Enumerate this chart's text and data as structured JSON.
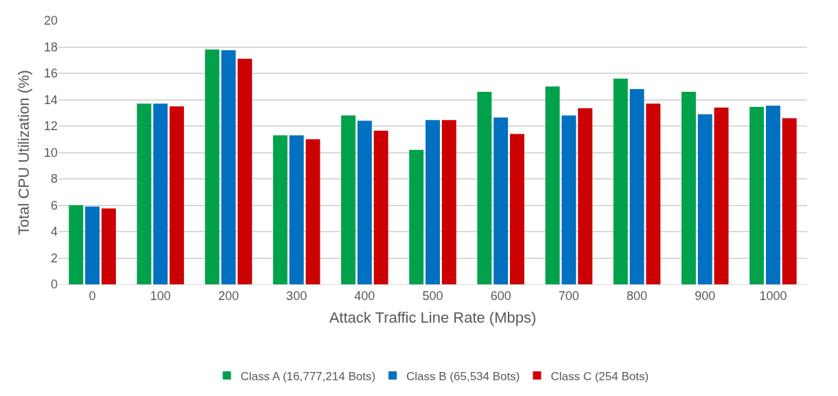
{
  "chart_data": {
    "type": "bar",
    "xlabel": "Attack Traffic Line Rate (Mbps)",
    "ylabel": "Total CPU Utilization (%)",
    "categories": [
      "0",
      "100",
      "200",
      "300",
      "400",
      "500",
      "600",
      "700",
      "800",
      "900",
      "1000"
    ],
    "series": [
      {
        "name": "Class A (16,777,214 Bots)",
        "color": "#00a14b",
        "values": [
          6.0,
          13.7,
          17.8,
          11.3,
          12.8,
          10.2,
          14.6,
          15.0,
          15.6,
          14.6,
          13.45
        ]
      },
      {
        "name": "Class B (65,534 Bots)",
        "color": "#0070c0",
        "values": [
          5.9,
          13.7,
          17.75,
          11.3,
          12.4,
          12.45,
          12.65,
          12.8,
          14.8,
          12.9,
          13.55
        ]
      },
      {
        "name": "Class C (254 Bots)",
        "color": "#cc0000",
        "values": [
          5.75,
          13.5,
          17.1,
          11.0,
          11.65,
          12.45,
          11.4,
          13.35,
          13.7,
          13.4,
          12.6
        ]
      }
    ],
    "ylim": [
      0,
      20
    ],
    "yticks": [
      0,
      2,
      4,
      6,
      8,
      10,
      12,
      14,
      16,
      18,
      20
    ],
    "grid": "y",
    "legend": "bottom"
  }
}
